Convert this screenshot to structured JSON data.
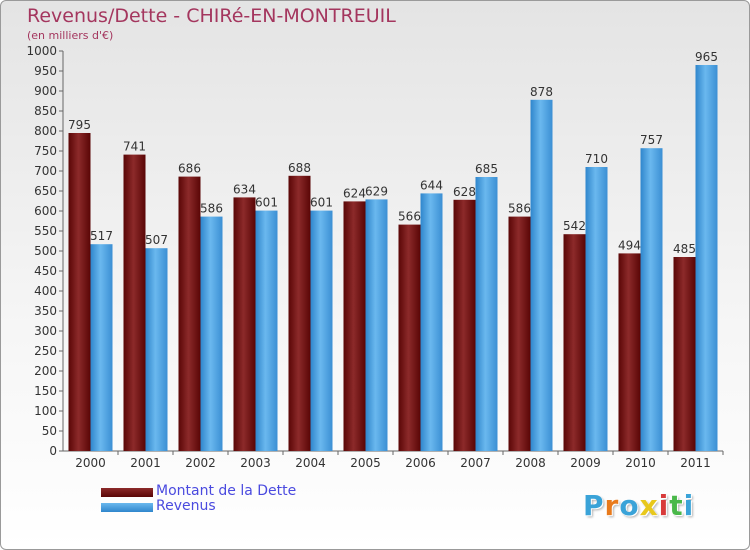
{
  "header": {
    "title": "Revenus/Dette - CHIRé-EN-MONTREUIL",
    "subtitle": "(en milliers d'€)"
  },
  "legend": {
    "items": [
      {
        "label": "Montant de la Dette",
        "color": "#7a1515"
      },
      {
        "label": "Revenus",
        "color": "#4aa0e4"
      }
    ]
  },
  "logo": {
    "text": "Proxiti",
    "letters": [
      {
        "ch": "P",
        "color": "#3aa3d8"
      },
      {
        "ch": "r",
        "color": "#e87a1c"
      },
      {
        "ch": "o",
        "color": "#3aa3d8"
      },
      {
        "ch": "x",
        "color": "#e8c81c"
      },
      {
        "ch": "i",
        "color": "#d83a3a"
      },
      {
        "ch": "t",
        "color": "#4ab84a"
      },
      {
        "ch": "i",
        "color": "#3aa3d8"
      }
    ]
  },
  "chart_data": {
    "type": "bar",
    "title": "Revenus/Dette - CHIRé-EN-MONTREUIL",
    "subtitle": "(en milliers d'€)",
    "categories": [
      "2000",
      "2001",
      "2002",
      "2003",
      "2004",
      "2005",
      "2006",
      "2007",
      "2008",
      "2009",
      "2010",
      "2011"
    ],
    "series": [
      {
        "name": "Montant de la Dette",
        "color": "#7a1515",
        "values": [
          795,
          741,
          686,
          634,
          688,
          624,
          566,
          628,
          586,
          542,
          494,
          485
        ]
      },
      {
        "name": "Revenus",
        "color": "#4aa0e4",
        "values": [
          517,
          507,
          586,
          601,
          601,
          629,
          644,
          685,
          878,
          710,
          757,
          965
        ]
      }
    ],
    "ylim": [
      0,
      1000
    ],
    "ystep": 50,
    "grid": false,
    "legend": "bottom-left"
  }
}
